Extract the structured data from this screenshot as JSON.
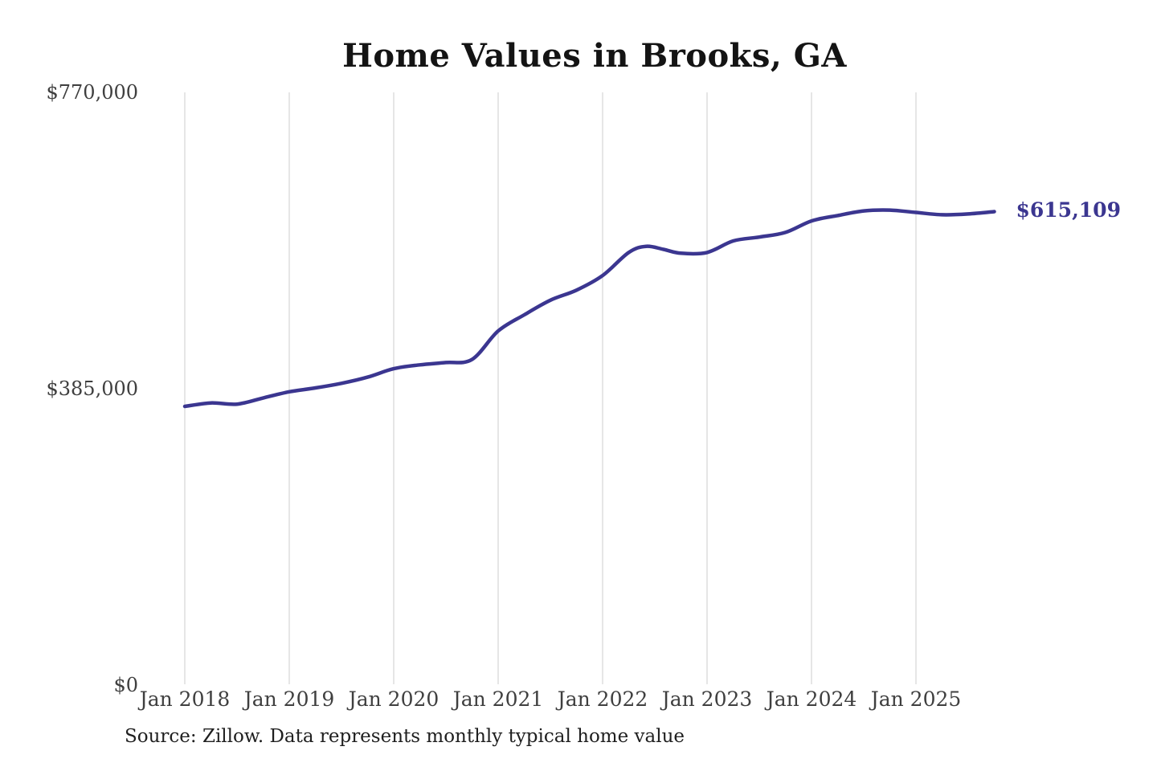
{
  "title": "Home Values in Brooks, GA",
  "source_note": "Source: Zillow. Data represents monthly typical home value",
  "chart_data": {
    "type": "line",
    "title": "Home Values in Brooks, GA",
    "xlabel": "",
    "ylabel": "",
    "ylim": [
      0,
      770000
    ],
    "grid": "vertical-only",
    "legend": "none",
    "line_color": "#3b3690",
    "grid_color": "#cccccc",
    "axis_text_color": "#3f3f3f",
    "end_label": "$615,109",
    "end_value": 615109,
    "x_ticks": [
      "Jan 2018",
      "Jan 2019",
      "Jan 2020",
      "Jan 2021",
      "Jan 2022",
      "Jan 2023",
      "Jan 2024",
      "Jan 2025"
    ],
    "y_ticks": [
      {
        "value": 0,
        "label": "$0"
      },
      {
        "value": 385000,
        "label": "$385,000"
      },
      {
        "value": 770000,
        "label": "$770,000"
      }
    ],
    "series": [
      {
        "name": "Monthly typical home value",
        "points": [
          {
            "date": "2018-01",
            "value": 362000
          },
          {
            "date": "2018-04",
            "value": 366500
          },
          {
            "date": "2018-07",
            "value": 365000
          },
          {
            "date": "2018-10",
            "value": 373000
          },
          {
            "date": "2019-01",
            "value": 381000
          },
          {
            "date": "2019-04",
            "value": 386000
          },
          {
            "date": "2019-07",
            "value": 392000
          },
          {
            "date": "2019-10",
            "value": 400000
          },
          {
            "date": "2020-01",
            "value": 411000
          },
          {
            "date": "2020-04",
            "value": 416000
          },
          {
            "date": "2020-07",
            "value": 419000
          },
          {
            "date": "2020-10",
            "value": 423000
          },
          {
            "date": "2021-01",
            "value": 460000
          },
          {
            "date": "2021-04",
            "value": 481000
          },
          {
            "date": "2021-07",
            "value": 500000
          },
          {
            "date": "2021-10",
            "value": 513000
          },
          {
            "date": "2022-01",
            "value": 532000
          },
          {
            "date": "2022-04",
            "value": 562000
          },
          {
            "date": "2022-06",
            "value": 570000
          },
          {
            "date": "2022-08",
            "value": 566000
          },
          {
            "date": "2022-10",
            "value": 561000
          },
          {
            "date": "2023-01",
            "value": 562000
          },
          {
            "date": "2023-04",
            "value": 577000
          },
          {
            "date": "2023-07",
            "value": 582000
          },
          {
            "date": "2023-10",
            "value": 588000
          },
          {
            "date": "2024-01",
            "value": 603000
          },
          {
            "date": "2024-04",
            "value": 610000
          },
          {
            "date": "2024-07",
            "value": 616000
          },
          {
            "date": "2024-10",
            "value": 617000
          },
          {
            "date": "2025-01",
            "value": 614000
          },
          {
            "date": "2025-04",
            "value": 611000
          },
          {
            "date": "2025-07",
            "value": 612000
          },
          {
            "date": "2025-10",
            "value": 615109
          }
        ]
      }
    ]
  }
}
